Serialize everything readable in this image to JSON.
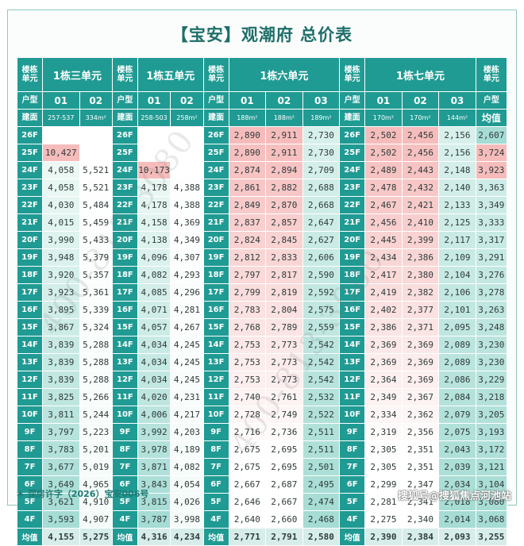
{
  "title": "【宝安】观潮府 总价表",
  "labels": {
    "building": "楼栋\n单元",
    "unit_type": "户型",
    "area": "建面",
    "avg": "均值"
  },
  "groups": [
    {
      "name": "1栋三单元",
      "codes": [
        "01",
        "02"
      ],
      "areas": [
        "257-537",
        "334m²"
      ]
    },
    {
      "name": "1栋五单元",
      "codes": [
        "01",
        "02"
      ],
      "areas": [
        "258-503",
        "258m²"
      ]
    },
    {
      "name": "1栋六单元",
      "codes": [
        "01",
        "02",
        "03"
      ],
      "areas": [
        "188m²",
        "188m²",
        "189m²"
      ]
    },
    {
      "name": "1栋七单元",
      "codes": [
        "01",
        "02",
        "03"
      ],
      "areas": [
        "170m²",
        "170m²",
        "144m²"
      ]
    }
  ],
  "avg_col": {
    "header": "均值"
  },
  "rows": [
    {
      "floor": "26F",
      "g1": [
        "",
        ""
      ],
      "g2": [
        "",
        ""
      ],
      "g3": [
        "2,890",
        "2,911",
        "2,730"
      ],
      "g4": [
        "2,502",
        "2,456",
        "2,156"
      ],
      "avg": "2,607"
    },
    {
      "floor": "25F",
      "g1": [
        "10,427",
        ""
      ],
      "g2": [
        "",
        ""
      ],
      "g3": [
        "2,890",
        "2,911",
        "2,730"
      ],
      "g4": [
        "2,502",
        "2,456",
        "2,156"
      ],
      "avg": "3,724"
    },
    {
      "floor": "24F",
      "g1": [
        "4,058",
        "5,521"
      ],
      "g2": [
        "10,173",
        ""
      ],
      "g3": [
        "2,874",
        "2,894",
        "2,709"
      ],
      "g4": [
        "2,489",
        "2,443",
        "2,148"
      ],
      "avg": "3,923"
    },
    {
      "floor": "23F",
      "g1": [
        "4,058",
        "5,521"
      ],
      "g2": [
        "4,178",
        "4,388"
      ],
      "g3": [
        "2,861",
        "2,882",
        "2,688"
      ],
      "g4": [
        "2,478",
        "2,432",
        "2,140"
      ],
      "avg": "3,363"
    },
    {
      "floor": "22F",
      "g1": [
        "4,030",
        "5,484"
      ],
      "g2": [
        "4,178",
        "4,388"
      ],
      "g3": [
        "2,849",
        "2,870",
        "2,668"
      ],
      "g4": [
        "2,467",
        "2,421",
        "2,133"
      ],
      "avg": "3,349"
    },
    {
      "floor": "21F",
      "g1": [
        "4,015",
        "5,459"
      ],
      "g2": [
        "4,158",
        "4,369"
      ],
      "g3": [
        "2,837",
        "2,857",
        "2,647"
      ],
      "g4": [
        "2,456",
        "2,410",
        "2,125"
      ],
      "avg": "3,333"
    },
    {
      "floor": "20F",
      "g1": [
        "3,990",
        "5,433"
      ],
      "g2": [
        "4,138",
        "4,349"
      ],
      "g3": [
        "2,824",
        "2,845",
        "2,627"
      ],
      "g4": [
        "2,445",
        "2,399",
        "2,117"
      ],
      "avg": "3,317"
    },
    {
      "floor": "19F",
      "g1": [
        "3,948",
        "5,379"
      ],
      "g2": [
        "4,096",
        "4,307"
      ],
      "g3": [
        "2,812",
        "2,833",
        "2,606"
      ],
      "g4": [
        "2,434",
        "2,386",
        "2,109"
      ],
      "avg": "3,291"
    },
    {
      "floor": "18F",
      "g1": [
        "3,920",
        "5,357"
      ],
      "g2": [
        "4,082",
        "4,293"
      ],
      "g3": [
        "2,797",
        "2,817",
        "2,590"
      ],
      "g4": [
        "2,417",
        "2,380",
        "2,104"
      ],
      "avg": "3,276"
    },
    {
      "floor": "17F",
      "g1": [
        "3,923",
        "5,361"
      ],
      "g2": [
        "4,085",
        "4,296"
      ],
      "g3": [
        "2,799",
        "2,819",
        "2,592"
      ],
      "g4": [
        "2,419",
        "2,382",
        "2,106"
      ],
      "avg": "3,278"
    },
    {
      "floor": "16F",
      "g1": [
        "3,895",
        "5,339"
      ],
      "g2": [
        "4,071",
        "4,281"
      ],
      "g3": [
        "2,783",
        "2,804",
        "2,575"
      ],
      "g4": [
        "2,402",
        "2,377",
        "2,101"
      ],
      "avg": "3,263"
    },
    {
      "floor": "15F",
      "g1": [
        "3,867",
        "5,324"
      ],
      "g2": [
        "4,057",
        "4,267"
      ],
      "g3": [
        "2,768",
        "2,789",
        "2,559"
      ],
      "g4": [
        "2,386",
        "2,371",
        "2,095"
      ],
      "avg": "3,248"
    },
    {
      "floor": "14F",
      "g1": [
        "3,839",
        "5,288"
      ],
      "g2": [
        "4,034",
        "4,245"
      ],
      "g3": [
        "2,753",
        "2,773",
        "2,542"
      ],
      "g4": [
        "2,369",
        "2,369",
        "2,089"
      ],
      "avg": "3,230"
    },
    {
      "floor": "13F",
      "g1": [
        "3,839",
        "5,288"
      ],
      "g2": [
        "4,034",
        "4,245"
      ],
      "g3": [
        "2,753",
        "2,773",
        "2,542"
      ],
      "g4": [
        "2,369",
        "2,369",
        "2,089"
      ],
      "avg": "3,230"
    },
    {
      "floor": "12F",
      "g1": [
        "3,839",
        "5,288"
      ],
      "g2": [
        "4,034",
        "4,245"
      ],
      "g3": [
        "2,753",
        "2,773",
        "2,542"
      ],
      "g4": [
        "2,364",
        "2,369",
        "2,086"
      ],
      "avg": "3,229"
    },
    {
      "floor": "11F",
      "g1": [
        "3,825",
        "5,266"
      ],
      "g2": [
        "4,020",
        "4,231"
      ],
      "g3": [
        "2,740",
        "2,761",
        "2,532"
      ],
      "g4": [
        "2,349",
        "2,367",
        "2,084"
      ],
      "avg": "3,218"
    },
    {
      "floor": "10F",
      "g1": [
        "3,811",
        "5,244"
      ],
      "g2": [
        "4,006",
        "4,217"
      ],
      "g3": [
        "2,728",
        "2,749",
        "2,522"
      ],
      "g4": [
        "2,334",
        "2,362",
        "2,079"
      ],
      "avg": "3,205"
    },
    {
      "floor": "9F",
      "g1": [
        "3,797",
        "5,223"
      ],
      "g2": [
        "3,992",
        "4,203"
      ],
      "g3": [
        "2,716",
        "2,736",
        "2,511"
      ],
      "g4": [
        "2,319",
        "2,356",
        "2,075"
      ],
      "avg": "3,193"
    },
    {
      "floor": "8F",
      "g1": [
        "3,783",
        "5,201"
      ],
      "g2": [
        "3,978",
        "4,189"
      ],
      "g3": [
        "2,675",
        "2,695",
        "2,511"
      ],
      "g4": [
        "2,305",
        "2,351",
        "2,043"
      ],
      "avg": "3,172"
    },
    {
      "floor": "7F",
      "g1": [
        "3,677",
        "5,019"
      ],
      "g2": [
        "3,871",
        "4,082"
      ],
      "g3": [
        "2,675",
        "2,695",
        "2,501"
      ],
      "g4": [
        "2,305",
        "2,351",
        "2,039"
      ],
      "avg": "3,121"
    },
    {
      "floor": "6F",
      "g1": [
        "3,649",
        "4,965"
      ],
      "g2": [
        "3,843",
        "4,054"
      ],
      "g3": [
        "2,667",
        "2,687",
        "2,495"
      ],
      "g4": [
        "2,299",
        "2,347",
        "2,034"
      ],
      "avg": "3,104"
    },
    {
      "floor": "5F",
      "g1": [
        "3,621",
        "4,910"
      ],
      "g2": [
        "3,815",
        "4,026"
      ],
      "g3": [
        "2,646",
        "2,667",
        "2,474"
      ],
      "g4": [
        "2,281",
        "2,341",
        "2,018"
      ],
      "avg": "3,080"
    },
    {
      "floor": "4F",
      "g1": [
        "3,593",
        "4,907"
      ],
      "g2": [
        "3,787",
        "3,998"
      ],
      "g3": [
        "2,640",
        "2,660",
        "2,468"
      ],
      "g4": [
        "2,275",
        "2,340",
        "2,014"
      ],
      "avg": "3,068"
    }
  ],
  "avg_row": {
    "label": "均值",
    "g1": [
      "4,155",
      "5,275"
    ],
    "g2": [
      "4,316",
      "4,234"
    ],
    "g3": [
      "2,771",
      "2,791",
      "2,580"
    ],
    "g4": [
      "2,390",
      "2,384",
      "2,093"
    ],
    "avg": "3,255"
  },
  "highlights": [
    {
      "row": "25F",
      "group": "g1",
      "col": 0
    },
    {
      "row": "24F",
      "group": "g2",
      "col": 0
    }
  ],
  "colors": {
    "header_teal": "#1f9b93",
    "cool": "#a5dcd4",
    "warm": "#f6bcbc",
    "light": "#f4fbf8"
  },
  "footer": {
    "license": "＊ 深房许字（2026）宝安006号",
    "source": "搜狐号@搜狐焦点河池站"
  },
  "watermark": "400-813-3080"
}
